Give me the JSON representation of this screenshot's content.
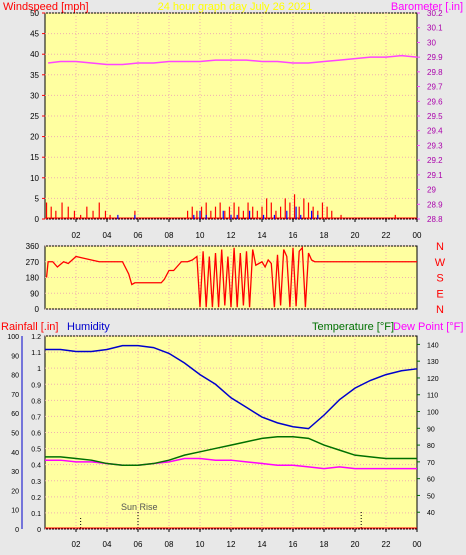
{
  "header": {
    "left_label": "Windspeed [mph]",
    "center_title": "24 hour graph day   July 26 2021",
    "right_label": "Barometer [.in]"
  },
  "colors": {
    "background": "#e8e8e8",
    "panel": "#ffffa0",
    "grid": "#f0b0b0",
    "wind": "#ff0000",
    "gust": "#0000ff",
    "barometer": "#ff44ff",
    "humidity": "#0000cc",
    "temperature": "#007000",
    "dewpoint": "#ff00ff",
    "rain": "#ff0000"
  },
  "time_ticks": [
    "02",
    "04",
    "06",
    "08",
    "10",
    "12",
    "14",
    "16",
    "18",
    "20",
    "22",
    "00"
  ],
  "chart_data": [
    {
      "type": "line",
      "title": "24 hour graph day   July 26 2021",
      "left_axis": {
        "label": "Windspeed [mph]",
        "ticks": [
          "50",
          "45",
          "40",
          "35",
          "30",
          "25",
          "20",
          "15",
          "10",
          "5",
          "0"
        ],
        "ylim": [
          0,
          50
        ]
      },
      "right_axis": {
        "label": "Barometer [.in]",
        "ticks": [
          "30.2",
          "30.1",
          "30",
          "29.9",
          "29.8",
          "29.7",
          "29.6",
          "29.5",
          "29.4",
          "29.3",
          "29.2",
          "29.1",
          "29",
          "28.9",
          "28.8"
        ],
        "ylim": [
          28.8,
          30.2
        ]
      },
      "x_hours": [
        0,
        24
      ],
      "series": [
        {
          "name": "Barometer [.in]",
          "axis": "right",
          "x": [
            0.2,
            1,
            2,
            3,
            4,
            5,
            6,
            7,
            8,
            9,
            10,
            11,
            12,
            13,
            14,
            15,
            16,
            17,
            18,
            19,
            20,
            21,
            22,
            23,
            24
          ],
          "values": [
            29.86,
            29.87,
            29.87,
            29.86,
            29.85,
            29.85,
            29.86,
            29.86,
            29.87,
            29.87,
            29.87,
            29.88,
            29.88,
            29.88,
            29.87,
            29.87,
            29.86,
            29.86,
            29.87,
            29.88,
            29.89,
            29.9,
            29.9,
            29.91,
            29.9
          ]
        },
        {
          "name": "Windspeed [mph]",
          "axis": "left",
          "style": "spikes",
          "x": [
            0.1,
            0.4,
            0.7,
            1.1,
            1.5,
            1.9,
            2.3,
            2.7,
            3.1,
            3.5,
            3.9,
            4.2,
            5.8,
            9.2,
            9.5,
            9.8,
            10.1,
            10.4,
            10.7,
            11.0,
            11.3,
            11.6,
            11.9,
            12.2,
            12.5,
            12.8,
            13.1,
            13.4,
            13.7,
            14.0,
            14.3,
            14.6,
            14.9,
            15.2,
            15.5,
            15.8,
            16.1,
            16.4,
            16.7,
            17.0,
            17.3,
            17.6,
            17.9,
            18.2,
            18.5,
            19.1,
            22.6
          ],
          "values": [
            4,
            3,
            2,
            4,
            3,
            2,
            1,
            3,
            2,
            4,
            2,
            1,
            2,
            2,
            3,
            2,
            3,
            4,
            2,
            3,
            4,
            2,
            3,
            4,
            3,
            2,
            4,
            3,
            2,
            3,
            5,
            4,
            2,
            3,
            5,
            4,
            6,
            3,
            5,
            4,
            3,
            2,
            4,
            3,
            2,
            1,
            1
          ]
        },
        {
          "name": "Gust",
          "axis": "left",
          "style": "spikes",
          "x": [
            4.7,
            5.8,
            9.6,
            10.0,
            10.4,
            11.5,
            12.0,
            12.4,
            13.2,
            14.1,
            14.8,
            15.6,
            16.2,
            16.5,
            17.2,
            17.6
          ],
          "values": [
            1,
            1,
            1,
            2,
            1,
            2,
            1,
            1,
            2,
            1,
            1,
            2,
            3,
            1,
            2,
            1
          ]
        }
      ]
    },
    {
      "type": "line",
      "title": "",
      "left_axis": {
        "ticks": [
          "360",
          "270",
          "180",
          "90",
          "0"
        ],
        "ylim": [
          0,
          360
        ]
      },
      "right_axis": {
        "ticks": [
          "N",
          "W",
          "S",
          "E",
          "N"
        ]
      },
      "x_hours": [
        0,
        24
      ],
      "series": [
        {
          "name": "Wind Direction",
          "x": [
            0.1,
            0.2,
            0.5,
            0.8,
            1.2,
            1.5,
            2.0,
            2.5,
            3.0,
            3.5,
            4.0,
            4.3,
            5.0,
            5.4,
            5.6,
            5.8,
            6.0,
            6.5,
            7.0,
            7.5,
            7.7,
            8.0,
            8.3,
            8.6,
            8.8,
            9.0,
            9.2,
            9.5,
            9.8,
            10.0,
            10.2,
            10.4,
            10.6,
            10.8,
            11.0,
            11.2,
            11.4,
            11.6,
            11.8,
            12.0,
            12.2,
            12.4,
            12.6,
            12.8,
            13.0,
            13.2,
            13.4,
            13.6,
            13.8,
            14.0,
            14.2,
            14.4,
            14.6,
            14.8,
            15.0,
            15.2,
            15.4,
            15.6,
            15.8,
            16.0,
            16.2,
            16.4,
            16.6,
            16.8,
            17.0,
            17.2,
            17.4,
            17.6,
            17.8,
            18.0,
            18.5,
            19.0,
            20.0,
            21.0,
            22.0,
            23.0,
            24.0
          ],
          "values": [
            180,
            270,
            270,
            240,
            270,
            260,
            300,
            290,
            280,
            270,
            270,
            270,
            270,
            200,
            140,
            150,
            150,
            150,
            150,
            150,
            170,
            220,
            220,
            250,
            270,
            270,
            270,
            280,
            300,
            10,
            330,
            10,
            300,
            10,
            320,
            10,
            340,
            20,
            300,
            10,
            350,
            10,
            320,
            20,
            330,
            10,
            340,
            250,
            260,
            270,
            240,
            280,
            260,
            10,
            310,
            20,
            340,
            300,
            10,
            350,
            15,
            330,
            350,
            10,
            320,
            280,
            270,
            270,
            270,
            270,
            270,
            270,
            270,
            270,
            270,
            270,
            270
          ]
        }
      ]
    },
    {
      "type": "line",
      "title": "",
      "left_axis": {
        "label": "Rainfall [.in]",
        "ticks": [
          "1.2",
          "1.1",
          "1",
          "0.9",
          "0.8",
          "0.7",
          "0.6",
          "0.5",
          "0.4",
          "0.3",
          "0.2",
          "0.1",
          "0"
        ],
        "ylim": [
          0,
          1.2
        ]
      },
      "humidity_axis": {
        "label": "Humidity",
        "ticks": [
          "100",
          "90",
          "80",
          "70",
          "60",
          "50",
          "40",
          "30",
          "20",
          "10",
          "0"
        ],
        "ylim": [
          0,
          100
        ]
      },
      "right_axis": {
        "label": "Temperature [°F]",
        "label2": "Dew Point [°F]",
        "ticks": [
          "140",
          "130",
          "120",
          "110",
          "100",
          "90",
          "80",
          "70",
          "60",
          "50",
          "40"
        ],
        "ylim": [
          30,
          145
        ]
      },
      "annotation": "Sun Rise",
      "x_hours": [
        0,
        24
      ],
      "series": [
        {
          "name": "Humidity",
          "axis": "humidity",
          "x": [
            0,
            1,
            2,
            3,
            4,
            5,
            6,
            7,
            8,
            9,
            10,
            11,
            12,
            13,
            14,
            15,
            16,
            17,
            18,
            19,
            20,
            21,
            22,
            23,
            24
          ],
          "values": [
            93,
            93,
            92,
            92,
            93,
            95,
            95,
            94,
            91,
            86,
            80,
            75,
            68,
            63,
            58,
            55,
            53,
            52,
            59,
            67,
            73,
            77,
            80,
            82,
            83
          ]
        },
        {
          "name": "Temperature [°F]",
          "axis": "right",
          "x": [
            0,
            1,
            2,
            3,
            4,
            5,
            6,
            7,
            8,
            9,
            10,
            11,
            12,
            13,
            14,
            15,
            16,
            17,
            18,
            19,
            20,
            21,
            22,
            23,
            24
          ],
          "values": [
            73,
            73,
            72,
            71,
            69,
            68,
            68,
            69,
            71,
            74,
            76,
            78,
            80,
            82,
            84,
            85,
            85,
            84,
            80,
            77,
            74,
            73,
            72,
            72,
            72
          ]
        },
        {
          "name": "Dew Point [°F]",
          "axis": "right",
          "x": [
            0,
            1,
            2,
            3,
            4,
            5,
            6,
            7,
            8,
            9,
            10,
            11,
            12,
            13,
            14,
            15,
            16,
            17,
            18,
            19,
            20,
            21,
            22,
            23,
            24
          ],
          "values": [
            71,
            71,
            70,
            70,
            69,
            68,
            68,
            69,
            70,
            72,
            72,
            71,
            71,
            70,
            69,
            68,
            68,
            67,
            66,
            67,
            66,
            66,
            66,
            66,
            66
          ]
        },
        {
          "name": "Rainfall [.in]",
          "axis": "left",
          "x": [
            0,
            24
          ],
          "values": [
            0,
            0
          ]
        }
      ]
    }
  ]
}
